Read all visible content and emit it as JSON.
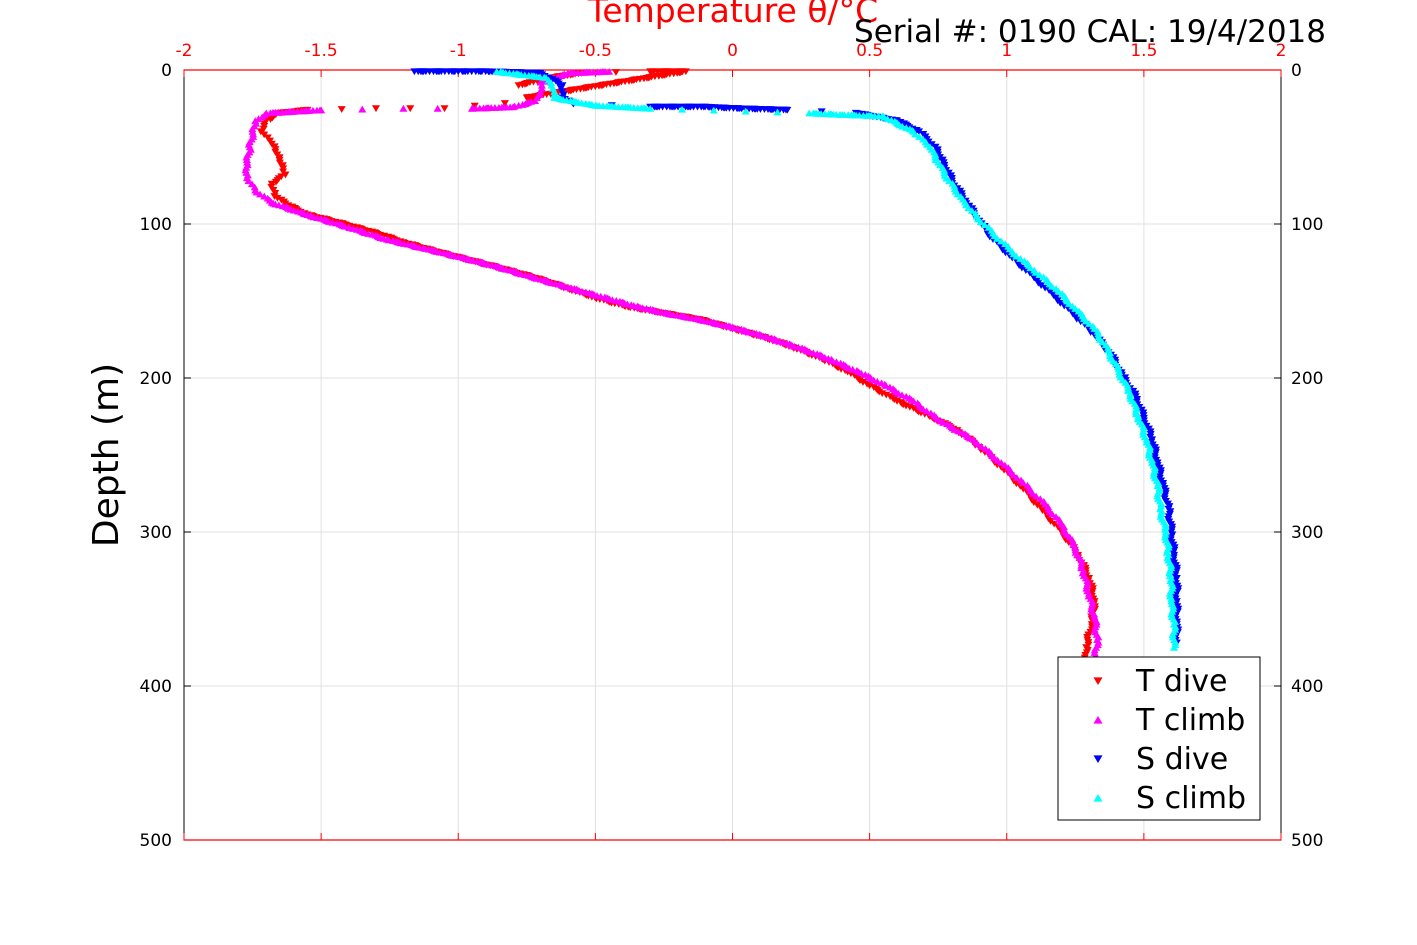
{
  "header": {
    "serial_text": "Serial #: 0190  CAL: 19/4/2018"
  },
  "chart_data": {
    "type": "scatter",
    "title": "Temperature θ/°C",
    "xlabel": "Temperature θ/°C",
    "ylabel": "Depth (m)",
    "x_axis_position": "top",
    "xlim": [
      -2,
      2
    ],
    "ylim": [
      0,
      500
    ],
    "y_reversed": true,
    "xticks": [
      "-2",
      "-1.5",
      "-1",
      "-0.5",
      "0",
      "0.5",
      "1",
      "1.5",
      "2"
    ],
    "yticks": [
      "0",
      "100",
      "200",
      "300",
      "400",
      "500"
    ],
    "grid": true,
    "legend_position": "bottom-right",
    "colors": {
      "axis": "#ff0000",
      "grid": "#e0e0e0"
    },
    "series": [
      {
        "name": "T dive",
        "marker": "triangle-down",
        "color": "#ff0000",
        "points": [
          [
            -0.78,
            10
          ],
          [
            -0.66,
            5
          ],
          [
            -0.55,
            2
          ],
          [
            -0.3,
            1
          ],
          [
            -0.17,
            1
          ],
          [
            -0.75,
            18
          ],
          [
            -0.72,
            20
          ],
          [
            -1.05,
            25
          ],
          [
            -1.3,
            25
          ],
          [
            -1.55,
            26
          ],
          [
            -1.65,
            28
          ],
          [
            -1.7,
            33
          ],
          [
            -1.72,
            40
          ],
          [
            -1.68,
            48
          ],
          [
            -1.66,
            55
          ],
          [
            -1.64,
            62
          ],
          [
            -1.63,
            68
          ],
          [
            -1.68,
            74
          ],
          [
            -1.67,
            82
          ],
          [
            -1.62,
            88
          ],
          [
            -1.55,
            94
          ],
          [
            -1.42,
            100
          ],
          [
            -1.3,
            106
          ],
          [
            -1.2,
            112
          ],
          [
            -1.08,
            118
          ],
          [
            -0.95,
            124
          ],
          [
            -0.82,
            130
          ],
          [
            -0.7,
            136
          ],
          [
            -0.6,
            142
          ],
          [
            -0.5,
            148
          ],
          [
            -0.38,
            154
          ],
          [
            -0.25,
            158
          ],
          [
            -0.12,
            162
          ],
          [
            0.0,
            168
          ],
          [
            0.12,
            174
          ],
          [
            0.22,
            180
          ],
          [
            0.33,
            188
          ],
          [
            0.42,
            196
          ],
          [
            0.5,
            205
          ],
          [
            0.6,
            215
          ],
          [
            0.72,
            225
          ],
          [
            0.82,
            234
          ],
          [
            0.9,
            245
          ],
          [
            0.98,
            258
          ],
          [
            1.06,
            272
          ],
          [
            1.13,
            286
          ],
          [
            1.2,
            300
          ],
          [
            1.26,
            315
          ],
          [
            1.3,
            330
          ],
          [
            1.32,
            345
          ],
          [
            1.31,
            360
          ],
          [
            1.29,
            375
          ],
          [
            1.29,
            385
          ]
        ]
      },
      {
        "name": "T climb",
        "marker": "triangle-up",
        "color": "#ff00ff",
        "points": [
          [
            1.32,
            385
          ],
          [
            1.33,
            370
          ],
          [
            1.32,
            355
          ],
          [
            1.3,
            340
          ],
          [
            1.28,
            325
          ],
          [
            1.25,
            310
          ],
          [
            1.2,
            295
          ],
          [
            1.14,
            282
          ],
          [
            1.06,
            268
          ],
          [
            0.98,
            255
          ],
          [
            0.88,
            240
          ],
          [
            0.76,
            228
          ],
          [
            0.66,
            215
          ],
          [
            0.56,
            205
          ],
          [
            0.46,
            196
          ],
          [
            0.36,
            188
          ],
          [
            0.24,
            180
          ],
          [
            0.12,
            173
          ],
          [
            0.0,
            167
          ],
          [
            -0.12,
            162
          ],
          [
            -0.24,
            158
          ],
          [
            -0.36,
            153
          ],
          [
            -0.48,
            147
          ],
          [
            -0.6,
            141
          ],
          [
            -0.72,
            135
          ],
          [
            -0.85,
            128
          ],
          [
            -0.98,
            122
          ],
          [
            -1.12,
            116
          ],
          [
            -1.26,
            110
          ],
          [
            -1.4,
            102
          ],
          [
            -1.55,
            94
          ],
          [
            -1.68,
            86
          ],
          [
            -1.74,
            78
          ],
          [
            -1.77,
            70
          ],
          [
            -1.77,
            60
          ],
          [
            -1.76,
            50
          ],
          [
            -1.75,
            40
          ],
          [
            -1.74,
            33
          ],
          [
            -1.7,
            28
          ],
          [
            -1.5,
            26
          ],
          [
            -1.2,
            25
          ],
          [
            -0.95,
            25
          ],
          [
            -0.8,
            24
          ],
          [
            -0.72,
            20
          ],
          [
            -0.7,
            14
          ],
          [
            -0.7,
            8
          ],
          [
            -0.6,
            2
          ],
          [
            -0.45,
            1
          ]
        ]
      },
      {
        "name": "S dive",
        "marker": "triangle-down",
        "color": "#0000ff",
        "points": [
          [
            -1.16,
            1
          ],
          [
            -1.0,
            1
          ],
          [
            -0.9,
            1
          ],
          [
            -0.7,
            2
          ],
          [
            -0.62,
            10
          ],
          [
            -0.62,
            18
          ],
          [
            -0.58,
            22
          ],
          [
            -0.3,
            24
          ],
          [
            -0.1,
            24
          ],
          [
            0.02,
            25
          ],
          [
            0.2,
            26
          ],
          [
            0.45,
            28
          ],
          [
            0.6,
            33
          ],
          [
            0.68,
            40
          ],
          [
            0.74,
            50
          ],
          [
            0.77,
            60
          ],
          [
            0.8,
            72
          ],
          [
            0.85,
            85
          ],
          [
            0.9,
            98
          ],
          [
            0.95,
            110
          ],
          [
            1.02,
            122
          ],
          [
            1.1,
            135
          ],
          [
            1.18,
            148
          ],
          [
            1.25,
            160
          ],
          [
            1.32,
            172
          ],
          [
            1.38,
            185
          ],
          [
            1.42,
            198
          ],
          [
            1.47,
            212
          ],
          [
            1.5,
            226
          ],
          [
            1.53,
            240
          ],
          [
            1.55,
            255
          ],
          [
            1.57,
            270
          ],
          [
            1.59,
            285
          ],
          [
            1.6,
            300
          ],
          [
            1.61,
            315
          ],
          [
            1.62,
            330
          ],
          [
            1.62,
            345
          ],
          [
            1.62,
            360
          ],
          [
            1.62,
            372
          ]
        ]
      },
      {
        "name": "S climb",
        "marker": "triangle-up",
        "color": "#00ffff",
        "points": [
          [
            1.61,
            375
          ],
          [
            1.61,
            360
          ],
          [
            1.6,
            345
          ],
          [
            1.6,
            330
          ],
          [
            1.59,
            315
          ],
          [
            1.58,
            300
          ],
          [
            1.56,
            285
          ],
          [
            1.55,
            270
          ],
          [
            1.53,
            255
          ],
          [
            1.51,
            240
          ],
          [
            1.48,
            225
          ],
          [
            1.45,
            210
          ],
          [
            1.41,
            196
          ],
          [
            1.37,
            182
          ],
          [
            1.32,
            168
          ],
          [
            1.25,
            155
          ],
          [
            1.18,
            142
          ],
          [
            1.1,
            130
          ],
          [
            1.02,
            118
          ],
          [
            0.95,
            106
          ],
          [
            0.89,
            95
          ],
          [
            0.84,
            84
          ],
          [
            0.79,
            72
          ],
          [
            0.75,
            60
          ],
          [
            0.72,
            50
          ],
          [
            0.66,
            40
          ],
          [
            0.55,
            30
          ],
          [
            0.4,
            29
          ],
          [
            0.28,
            28
          ],
          [
            -0.3,
            25
          ],
          [
            -0.5,
            23
          ],
          [
            -0.65,
            18
          ],
          [
            -0.66,
            10
          ],
          [
            -0.68,
            5
          ],
          [
            -0.86,
            1
          ]
        ]
      }
    ]
  }
}
